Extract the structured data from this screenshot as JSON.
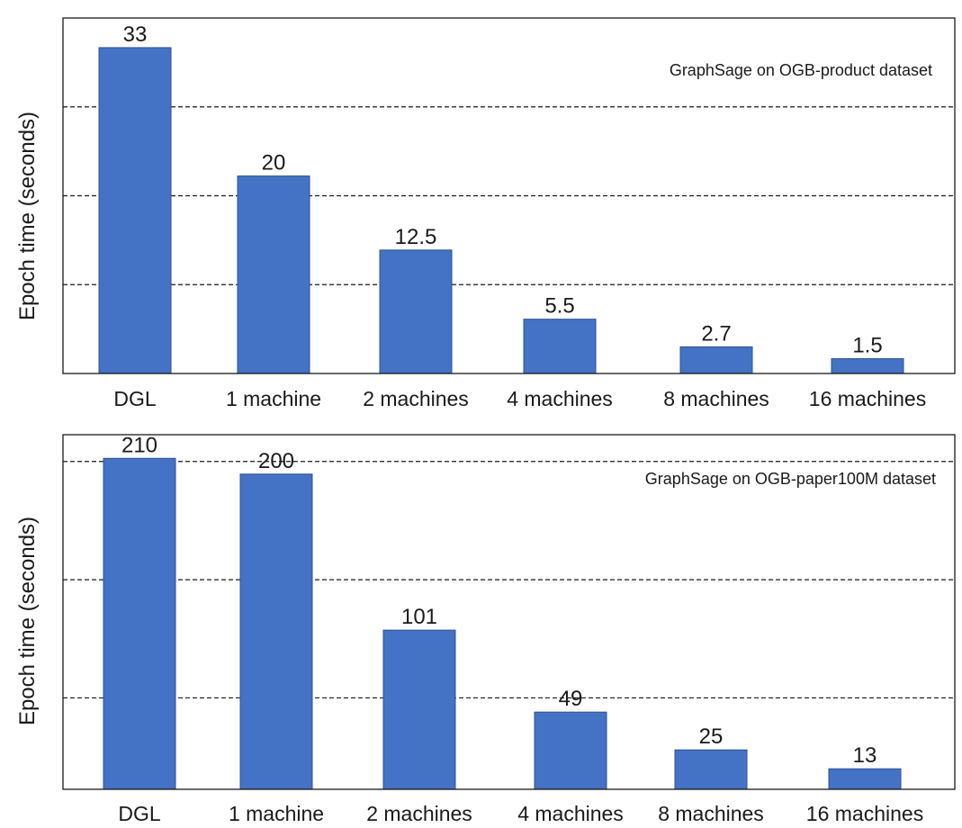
{
  "chart_data": [
    {
      "type": "bar",
      "title": "GraphSage on OGB-product dataset",
      "xlabel": "",
      "ylabel": "Epoch time (seconds)",
      "categories": [
        "DGL",
        "1 machine",
        "2 machines",
        "4 machines",
        "8 machines",
        "16 machines"
      ],
      "values": [
        33,
        20,
        12.5,
        5.5,
        2.7,
        1.5
      ],
      "value_labels": [
        "33",
        "20",
        "12.5",
        "5.5",
        "2.7",
        "1.5"
      ],
      "ylim": [
        0,
        36
      ],
      "gridlines": [
        9,
        18,
        27
      ],
      "grid": true,
      "legend": "none"
    },
    {
      "type": "bar",
      "title": "GraphSage on OGB-paper100M dataset",
      "xlabel": "",
      "ylabel": "Epoch time (seconds)",
      "categories": [
        "DGL",
        "1 machine",
        "2 machines",
        "4 machines",
        "8 machines",
        "16 machines"
      ],
      "values": [
        210,
        200,
        101,
        49,
        25,
        13
      ],
      "value_labels": [
        "210",
        "200",
        "101",
        "49",
        "25",
        "13"
      ],
      "ylim": [
        0,
        225
      ],
      "gridlines": [
        58,
        133,
        208
      ],
      "grid": true,
      "legend": "none"
    }
  ],
  "colors": {
    "bar_fill": "#4472c4",
    "bar_stroke": "#2f528f",
    "axis": "#1a1a1a",
    "grid": "#1a1a1a"
  }
}
